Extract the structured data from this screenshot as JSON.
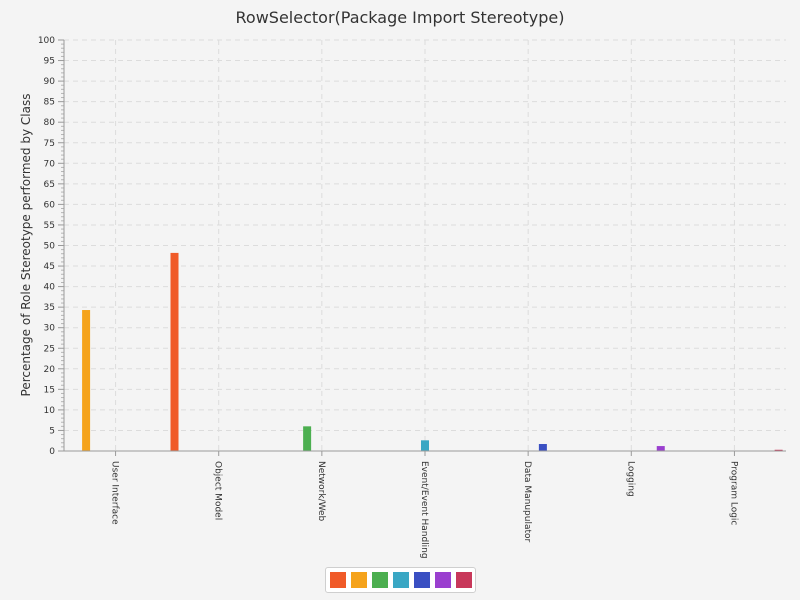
{
  "chart_data": {
    "type": "bar",
    "title": "RowSelector(Package Import Stereotype)",
    "ylabel": "Percentage of Role Stereotype performed by Class",
    "xlabel": "",
    "ylim": [
      0,
      100
    ],
    "ytick_step": 5,
    "grid": true,
    "legend": "bottom-center",
    "categories": [
      "User Interface",
      "Object Model",
      "Network/Web",
      "Event/Event Handling",
      "Data Manupulator",
      "Logging",
      "Program Logic"
    ],
    "series": [
      {
        "color": "#f05a28",
        "values": [
          0,
          48.2,
          0,
          0,
          0,
          0,
          0
        ]
      },
      {
        "color": "#f5a31b",
        "values": [
          34.3,
          0,
          0,
          0,
          0,
          0,
          0
        ]
      },
      {
        "color": "#4caf50",
        "values": [
          0,
          0,
          6.0,
          0,
          0,
          0,
          0
        ]
      },
      {
        "color": "#3aa7c4",
        "values": [
          0,
          0,
          0,
          2.6,
          0,
          0,
          0
        ]
      },
      {
        "color": "#3a4fc2",
        "values": [
          0,
          0,
          0,
          0,
          1.7,
          0,
          0
        ]
      },
      {
        "color": "#9a3fcf",
        "values": [
          0,
          0,
          0,
          0,
          0,
          1.2,
          0
        ]
      },
      {
        "color": "#c8385a",
        "values": [
          0,
          0,
          0,
          0,
          0,
          0,
          0.3
        ]
      }
    ]
  }
}
